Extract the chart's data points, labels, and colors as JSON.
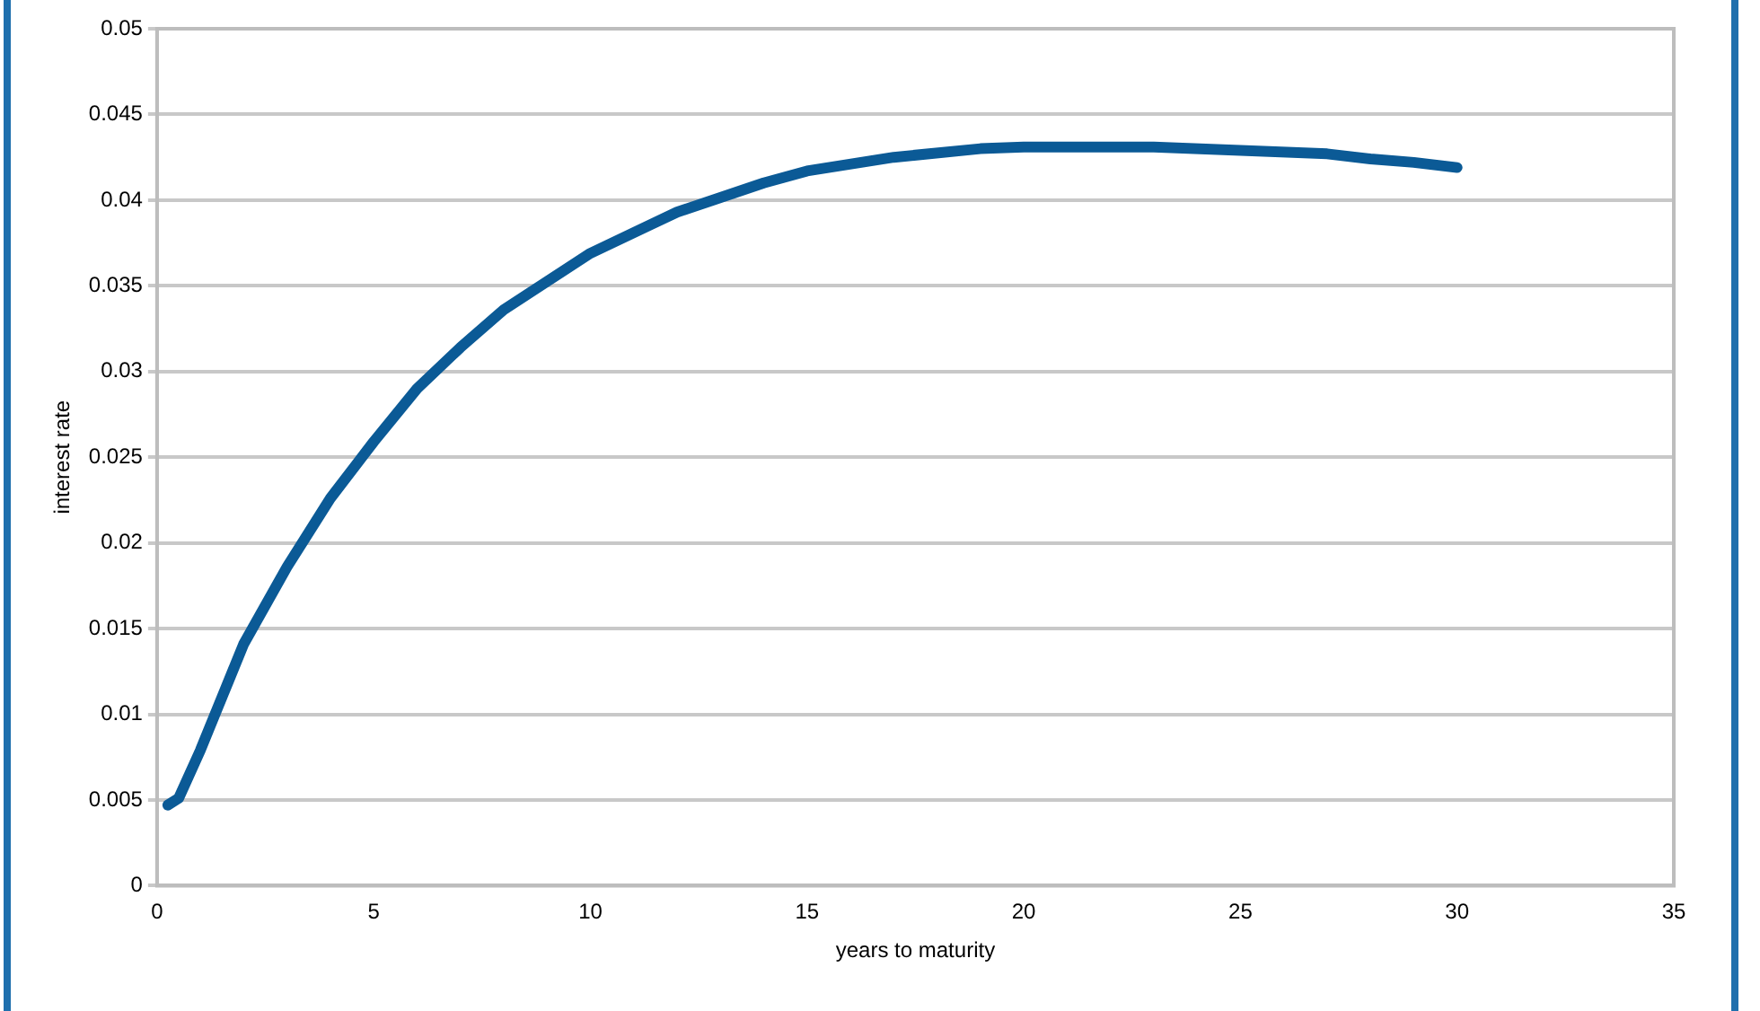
{
  "chart_data": {
    "type": "line",
    "xlabel": "years to maturity",
    "ylabel": "interest rate",
    "x": [
      0.25,
      0.5,
      1,
      2,
      3,
      4,
      5,
      6,
      7,
      8,
      10,
      12,
      14,
      15,
      17,
      19,
      20,
      23,
      25,
      27,
      28,
      29,
      30
    ],
    "series": [
      {
        "color": "#0b5a96",
        "values": [
          0.0047,
          0.0051,
          0.0079,
          0.0141,
          0.0186,
          0.0226,
          0.0259,
          0.029,
          0.0314,
          0.0336,
          0.0369,
          0.0393,
          0.041,
          0.0417,
          0.0425,
          0.043,
          0.0431,
          0.0431,
          0.0429,
          0.0427,
          0.0424,
          0.0422,
          0.0419
        ]
      }
    ],
    "xlim": [
      0,
      35
    ],
    "xticks": [
      0,
      5,
      10,
      15,
      20,
      25,
      30,
      35
    ],
    "ylim": [
      0,
      0.05
    ],
    "yticks": [
      0,
      0.005,
      0.01,
      0.015,
      0.02,
      0.025,
      0.03,
      0.035,
      0.04,
      0.045,
      0.05
    ],
    "grid": "y",
    "legend": false,
    "marker": "none",
    "line_style": "solid"
  }
}
